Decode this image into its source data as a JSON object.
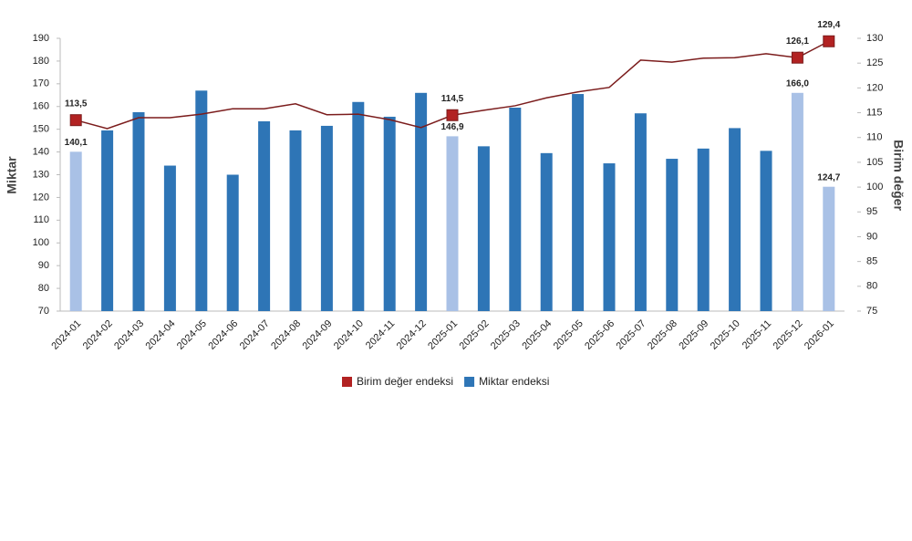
{
  "chart_data": {
    "type": "bar-line",
    "y_axis_label": "Miktar",
    "y2_axis_label": "Birim değer",
    "categories": [
      "2024-01",
      "2024-02",
      "2024-03",
      "2024-04",
      "2024-05",
      "2024-06",
      "2024-07",
      "2024-08",
      "2024-09",
      "2024-10",
      "2024-11",
      "2024-12",
      "2025-01",
      "2025-02",
      "2025-03",
      "2025-04",
      "2025-05",
      "2025-06",
      "2025-07",
      "2025-08",
      "2025-09",
      "2025-10",
      "2025-11",
      "2025-12",
      "2026-01"
    ],
    "ylim": [
      70,
      190
    ],
    "yticks": [
      70,
      80,
      90,
      100,
      110,
      120,
      130,
      140,
      150,
      160,
      170,
      180,
      190
    ],
    "y2lim": [
      75,
      130
    ],
    "y2ticks": [
      75,
      80,
      85,
      90,
      95,
      100,
      105,
      110,
      115,
      120,
      125,
      130
    ],
    "series": [
      {
        "name": "Birim değer endeksi",
        "type": "line",
        "axis": "y2",
        "color": "#7b1c1c",
        "marker_color": "#b22222",
        "values": [
          113.5,
          111.8,
          114.0,
          114.0,
          114.7,
          115.8,
          115.8,
          116.8,
          114.6,
          114.7,
          113.6,
          112.0,
          114.5,
          115.5,
          116.4,
          118.0,
          119.2,
          120.1,
          125.6,
          125.2,
          126.0,
          126.1,
          126.9,
          126.1,
          129.4
        ],
        "value_labels": [
          "113,5",
          null,
          null,
          null,
          null,
          null,
          null,
          null,
          null,
          null,
          null,
          null,
          "114,5",
          null,
          null,
          null,
          null,
          null,
          null,
          null,
          null,
          null,
          null,
          "126,1",
          "129,4"
        ]
      },
      {
        "name": "Miktar endeksi",
        "type": "bar",
        "color": "#2e75b6",
        "bar_colors": [
          "#a9c1e6",
          "#2e75b6",
          "#2e75b6",
          "#2e75b6",
          "#2e75b6",
          "#2e75b6",
          "#2e75b6",
          "#2e75b6",
          "#2e75b6",
          "#2e75b6",
          "#2e75b6",
          "#2e75b6",
          "#a9c1e6",
          "#2e75b6",
          "#2e75b6",
          "#2e75b6",
          "#2e75b6",
          "#2e75b6",
          "#2e75b6",
          "#2e75b6",
          "#2e75b6",
          "#2e75b6",
          "#2e75b6",
          "#a9c1e6",
          "#a9c1e6"
        ],
        "values": [
          140.1,
          149.5,
          157.5,
          134,
          167,
          130,
          153.5,
          149.5,
          151.5,
          162,
          155.5,
          166,
          146.9,
          142.5,
          159.5,
          139.5,
          165.5,
          135,
          157,
          137,
          141.5,
          150.5,
          140.5,
          166.0,
          124.7
        ],
        "value_labels": [
          "140,1",
          null,
          null,
          null,
          null,
          null,
          null,
          null,
          null,
          null,
          null,
          null,
          "146,9",
          null,
          null,
          null,
          null,
          null,
          null,
          null,
          null,
          null,
          null,
          "166,0",
          "124,7"
        ]
      }
    ]
  }
}
